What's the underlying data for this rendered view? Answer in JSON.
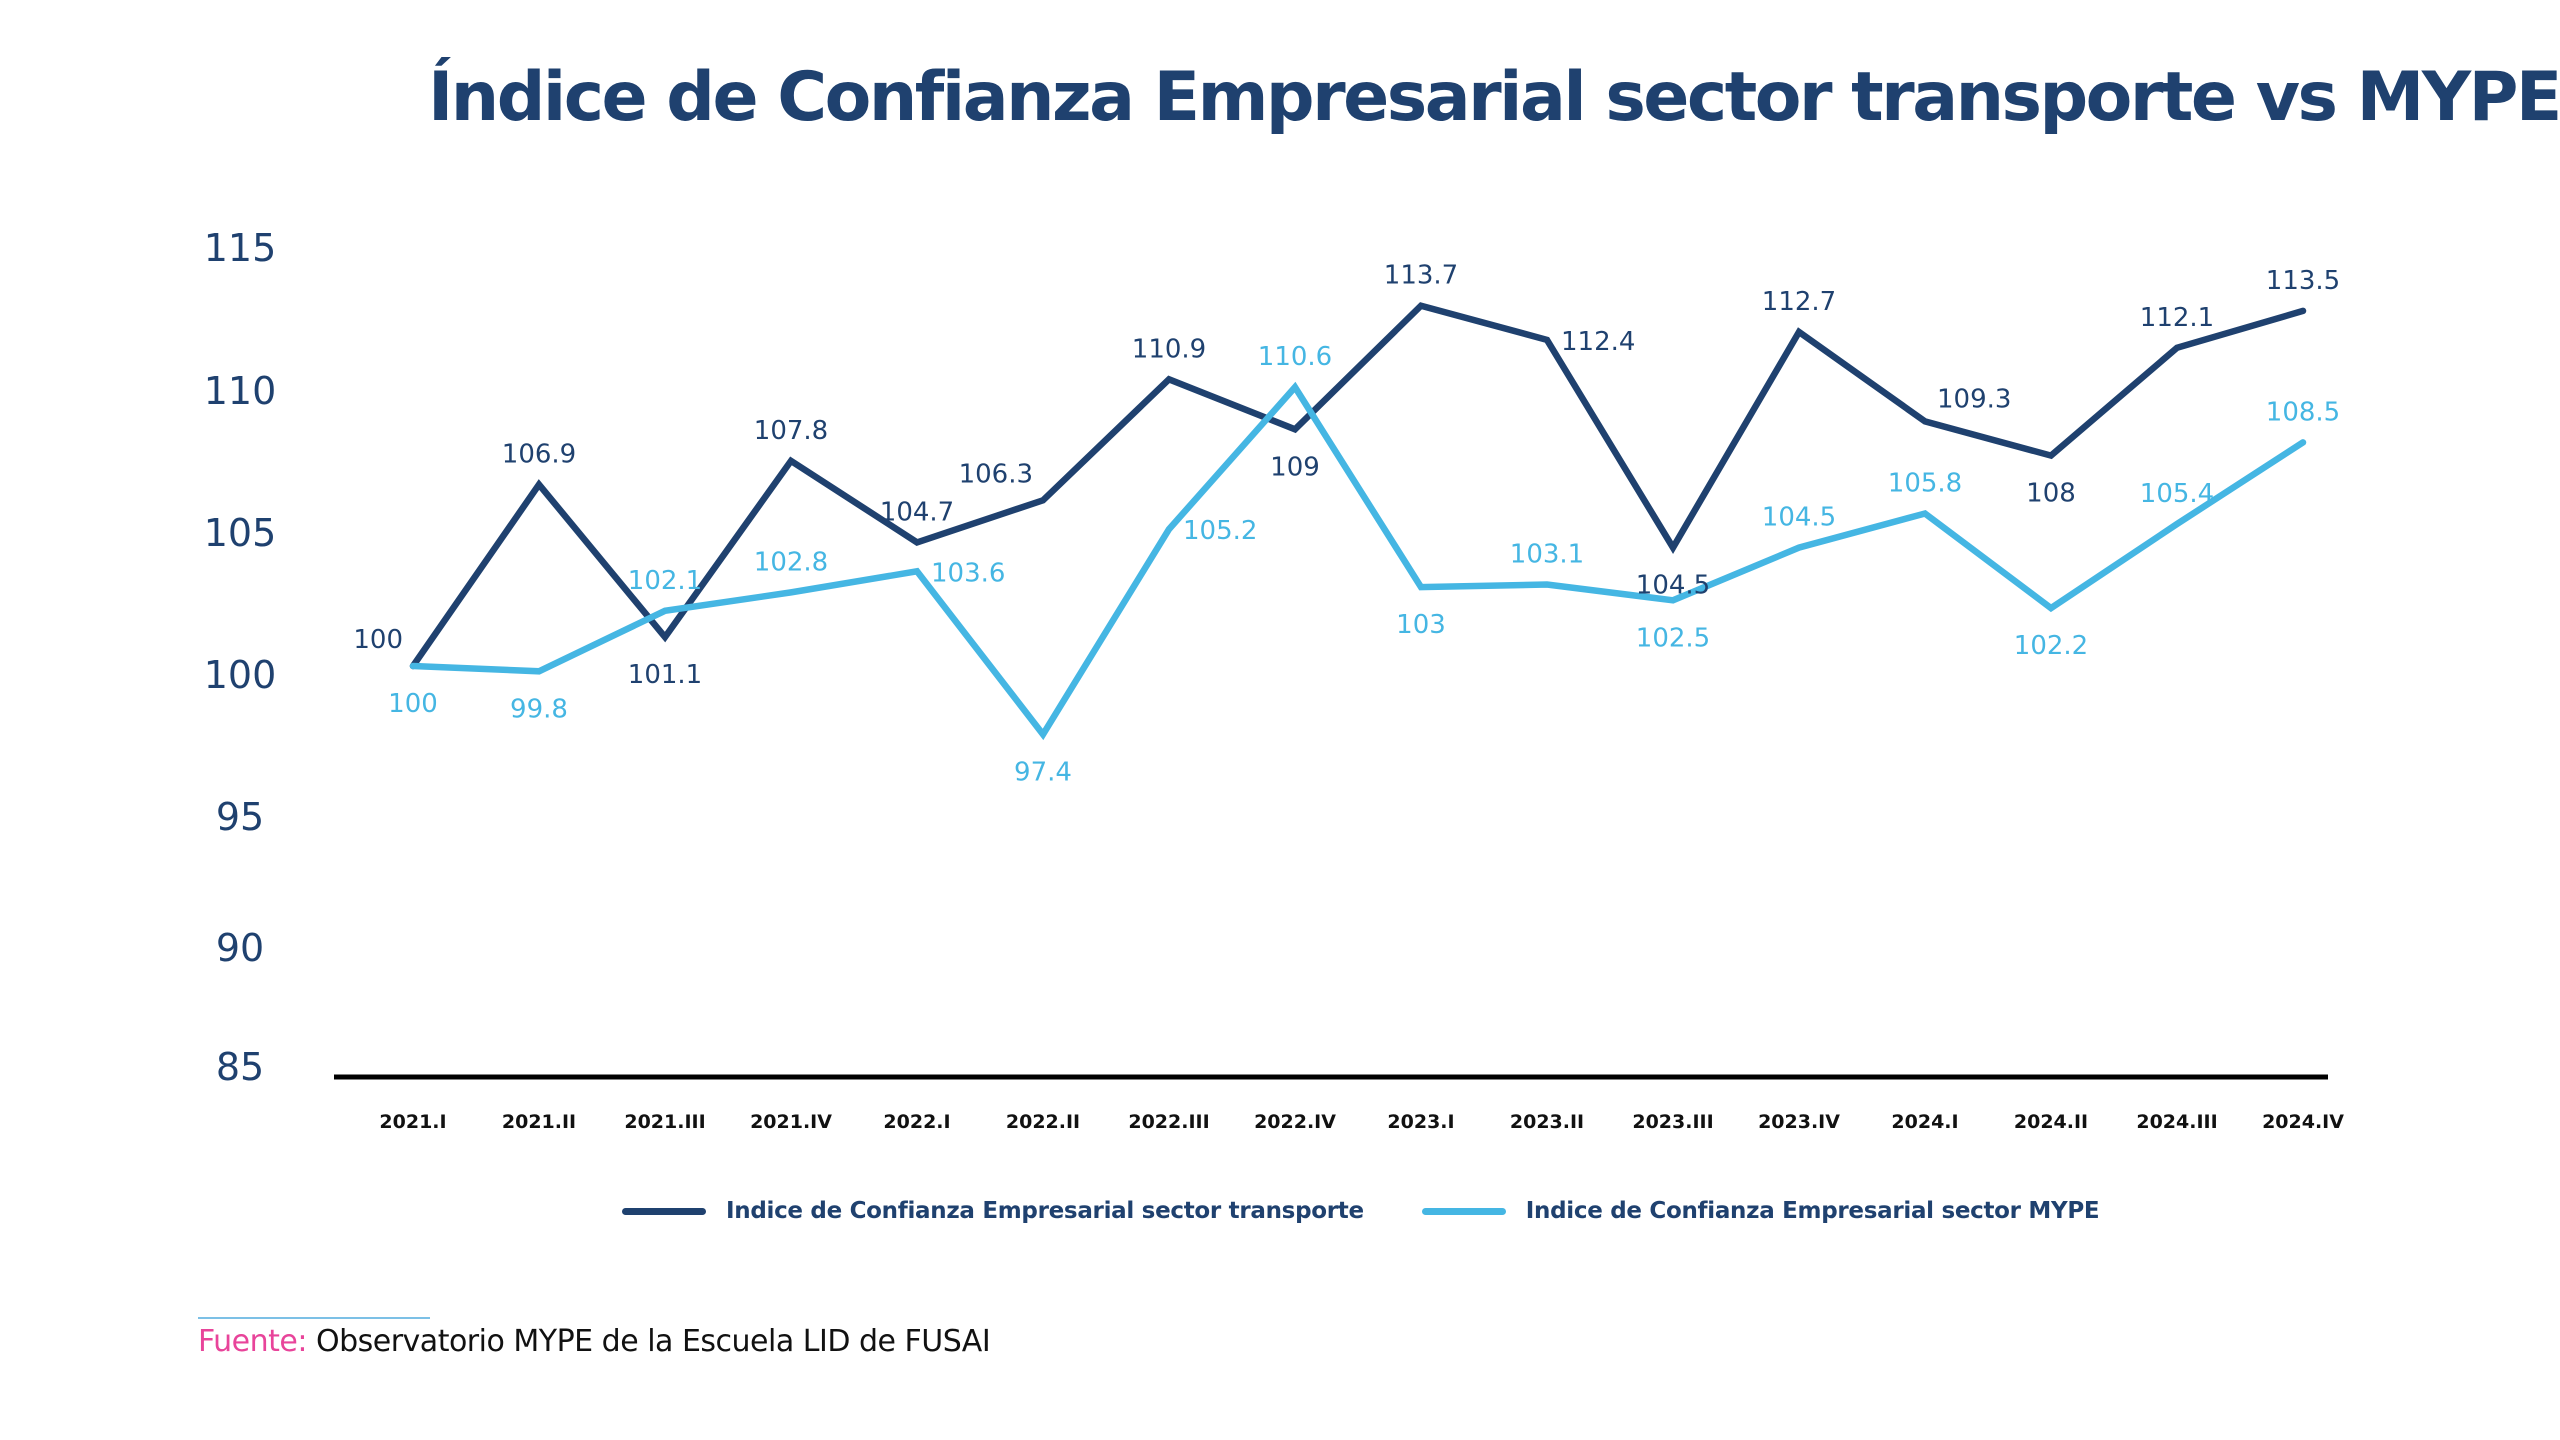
{
  "title": "Índice de Confianza Empresarial sector transporte vs MYPE",
  "chart_data": {
    "type": "line",
    "title": "Índice de Confianza Empresarial sector transporte vs MYPE",
    "xlabel": "",
    "ylabel": "",
    "categories": [
      "2021.I",
      "2021.II",
      "2021.III",
      "2021.IV",
      "2022.I",
      "2022.II",
      "2022.III",
      "2022.IV",
      "2023.I",
      "2023.II",
      "2023.III",
      "2023.IV",
      "2024.I",
      "2024.II",
      "2024.III",
      "2024.IV"
    ],
    "y_ticks": [
      "115",
      "110",
      "105",
      "100",
      "95",
      "90",
      "85"
    ],
    "grid": false,
    "legend_position": "bottom",
    "series": [
      {
        "name": "Indice de Confianza Empresarial sector transporte",
        "color": "#1f416f",
        "values": [
          100,
          106.9,
          101.1,
          107.8,
          104.7,
          106.3,
          110.9,
          109,
          113.7,
          112.4,
          104.5,
          112.7,
          109.3,
          108,
          112.1,
          113.5
        ],
        "labels": [
          "100",
          "106.9",
          "101.1",
          "107.8",
          "104.7",
          "106.3",
          "110.9",
          "109",
          "113.7",
          "112.4",
          "104.5",
          "112.7",
          "109.3",
          "108",
          "112.1",
          "113.5"
        ],
        "label_pos": [
          "above-left",
          "above",
          "below",
          "above",
          "above",
          "above-left",
          "above",
          "below",
          "above",
          "right",
          "below",
          "above",
          "above-right",
          "below",
          "above",
          "above"
        ]
      },
      {
        "name": "Indice de Confianza Empresarial sector MYPE",
        "color": "#45b6e3",
        "values": [
          100,
          99.8,
          102.1,
          102.8,
          103.6,
          97.4,
          105.2,
          110.6,
          103,
          103.1,
          102.5,
          104.5,
          105.8,
          102.2,
          105.4,
          108.5
        ],
        "labels": [
          "100",
          "99.8",
          "102.1",
          "102.8",
          "103.6",
          "97.4",
          "105.2",
          "110.6",
          "103",
          "103.1",
          "102.5",
          "104.5",
          "105.8",
          "102.2",
          "105.4",
          "108.5"
        ],
        "label_pos": [
          "below",
          "below",
          "above",
          "above",
          "right",
          "below",
          "right",
          "above",
          "below",
          "above",
          "below",
          "above",
          "above",
          "below",
          "above",
          "above"
        ]
      }
    ]
  },
  "legend": [
    {
      "label": "Indice de Confianza Empresarial sector transporte",
      "color": "#1f416f"
    },
    {
      "label": "Indice de Confianza Empresarial sector MYPE",
      "color": "#45b6e3"
    }
  ],
  "source": {
    "label": "Fuente:",
    "text": " Observatorio MYPE de la Escuela LID de FUSAI"
  }
}
